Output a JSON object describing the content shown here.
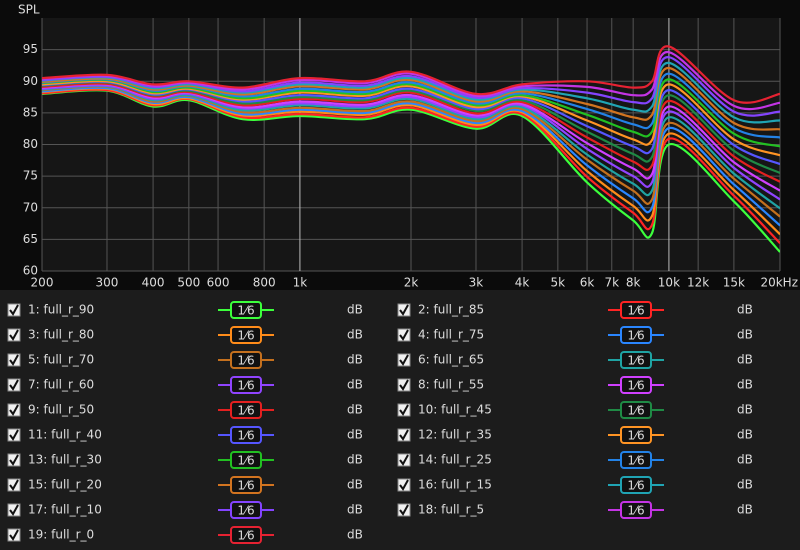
{
  "chart_data": {
    "type": "line",
    "y_label": "SPL",
    "log_x": true,
    "grid": true,
    "xlim": [
      200,
      20000
    ],
    "ylim": [
      60,
      100
    ],
    "xticks": [
      200,
      300,
      400,
      500,
      600,
      800,
      {
        "value": 1000,
        "label": "1k"
      },
      {
        "value": 2000,
        "label": "2k"
      },
      {
        "value": 3000,
        "label": "3k"
      },
      {
        "value": 4000,
        "label": "4k"
      },
      {
        "value": 5000,
        "label": "5k"
      },
      {
        "value": 6000,
        "label": "6k"
      },
      {
        "value": 7000,
        "label": "7k"
      },
      {
        "value": 8000,
        "label": "8k"
      },
      {
        "value": 10000,
        "label": "10k"
      },
      {
        "value": 12000,
        "label": "12k"
      },
      {
        "value": 15000,
        "label": "15k"
      },
      {
        "value": 20000,
        "label": "20kHz"
      }
    ],
    "yticks": [
      60,
      65,
      70,
      75,
      80,
      85,
      90,
      95
    ],
    "smoothing_label": "1⁄6",
    "unit_label": "dB",
    "x": [
      200,
      300,
      400,
      500,
      700,
      1000,
      1500,
      2000,
      3000,
      4000,
      6000,
      8000,
      9000,
      10000,
      15000,
      20000
    ],
    "series": [
      {
        "name": "1: full_r_90",
        "color": "#3cff3c",
        "values": [
          88.0,
          88.5,
          86.0,
          87.0,
          84.0,
          84.5,
          84.0,
          85.5,
          82.5,
          84.5,
          74.0,
          68.0,
          66.0,
          80.0,
          71.0,
          63.0
        ]
      },
      {
        "name": "2: full_r_85",
        "color": "#ff2424",
        "values": [
          88.1,
          88.6,
          86.2,
          87.2,
          84.3,
          84.8,
          84.3,
          85.8,
          82.8,
          84.8,
          74.9,
          69.2,
          67.3,
          80.9,
          71.9,
          64.4
        ]
      },
      {
        "name": "3: full_r_80",
        "color": "#ff8c1a",
        "values": [
          88.3,
          88.8,
          86.4,
          87.3,
          84.6,
          85.2,
          84.7,
          86.2,
          83.1,
          85.1,
          75.8,
          70.3,
          68.7,
          81.7,
          72.8,
          65.8
        ]
      },
      {
        "name": "4: full_r_75",
        "color": "#2a86ff",
        "values": [
          88.4,
          88.9,
          86.6,
          87.5,
          84.8,
          85.5,
          85.0,
          86.5,
          83.4,
          85.3,
          76.7,
          71.5,
          70.0,
          82.6,
          73.7,
          67.2
        ]
      },
      {
        "name": "5: full_r_70",
        "color": "#c4701e",
        "values": [
          88.6,
          89.1,
          86.8,
          87.7,
          85.1,
          85.8,
          85.3,
          86.8,
          83.7,
          85.6,
          77.6,
          72.7,
          71.3,
          83.4,
          74.6,
          68.6
        ]
      },
      {
        "name": "6: full_r_65",
        "color": "#1fa3a3",
        "values": [
          88.7,
          89.2,
          87.0,
          87.8,
          85.4,
          86.2,
          85.7,
          87.2,
          84.0,
          85.9,
          78.4,
          73.8,
          72.7,
          84.3,
          75.4,
          69.9
        ]
      },
      {
        "name": "7: full_r_60",
        "color": "#9044ff",
        "values": [
          88.8,
          89.3,
          87.2,
          88.0,
          85.7,
          86.5,
          86.0,
          87.5,
          84.3,
          86.2,
          79.3,
          75.0,
          74.0,
          85.2,
          76.3,
          71.3
        ]
      },
      {
        "name": "8: full_r_55",
        "color": "#d040ff",
        "values": [
          89.0,
          89.5,
          87.4,
          88.2,
          85.9,
          86.8,
          86.3,
          87.8,
          84.6,
          86.4,
          80.2,
          76.2,
          75.3,
          86.0,
          77.2,
          72.7
        ]
      },
      {
        "name": "9: full_r_50",
        "color": "#e42020",
        "values": [
          89.1,
          89.6,
          87.6,
          88.3,
          86.2,
          87.2,
          86.7,
          88.2,
          84.9,
          86.7,
          81.1,
          77.3,
          76.7,
          86.9,
          78.1,
          74.1
        ]
      },
      {
        "name": "10: full_r_45",
        "color": "#1f8a45",
        "values": [
          89.3,
          89.8,
          87.8,
          88.5,
          86.5,
          87.5,
          87.0,
          88.5,
          85.3,
          87.0,
          82.0,
          78.5,
          78.0,
          87.8,
          79.0,
          75.5
        ]
      },
      {
        "name": "11: full_r_40",
        "color": "#5656ff",
        "values": [
          89.4,
          89.9,
          87.9,
          88.7,
          86.8,
          87.8,
          87.3,
          88.8,
          85.6,
          87.3,
          82.9,
          79.7,
          79.3,
          88.6,
          79.9,
          76.9
        ]
      },
      {
        "name": "12: full_r_35",
        "color": "#ff9424",
        "values": [
          89.5,
          90.0,
          88.1,
          88.8,
          87.1,
          88.2,
          87.7,
          89.2,
          85.9,
          87.6,
          83.8,
          80.8,
          80.7,
          89.5,
          80.8,
          78.3
        ]
      },
      {
        "name": "13: full_r_30",
        "color": "#22c022",
        "values": [
          89.7,
          90.2,
          88.3,
          89.0,
          87.3,
          88.5,
          88.0,
          89.5,
          86.2,
          87.8,
          84.7,
          82.0,
          82.0,
          90.3,
          81.7,
          79.7
        ]
      },
      {
        "name": "14: full_r_25",
        "color": "#2382e6",
        "values": [
          89.8,
          90.3,
          88.5,
          89.2,
          87.6,
          88.8,
          88.3,
          89.8,
          86.5,
          88.1,
          85.6,
          83.2,
          83.3,
          91.2,
          82.6,
          81.1
        ]
      },
      {
        "name": "15: full_r_20",
        "color": "#d27420",
        "values": [
          89.9,
          90.4,
          88.7,
          89.3,
          87.9,
          89.2,
          88.7,
          90.2,
          86.8,
          88.4,
          86.4,
          84.3,
          84.7,
          92.1,
          83.4,
          82.4
        ]
      },
      {
        "name": "16: full_r_15",
        "color": "#20a4b4",
        "values": [
          90.1,
          90.6,
          88.9,
          89.5,
          88.2,
          89.5,
          89.0,
          90.5,
          87.1,
          88.7,
          87.3,
          85.5,
          86.0,
          92.9,
          84.3,
          83.8
        ]
      },
      {
        "name": "17: full_r_10",
        "color": "#8444ff",
        "values": [
          90.2,
          90.7,
          89.1,
          89.7,
          88.4,
          89.8,
          89.3,
          90.8,
          87.4,
          88.9,
          88.2,
          86.7,
          87.3,
          93.8,
          85.2,
          85.2
        ]
      },
      {
        "name": "18: full_r_5",
        "color": "#c434e4",
        "values": [
          90.4,
          90.9,
          89.3,
          89.8,
          88.7,
          90.2,
          89.7,
          91.2,
          87.7,
          89.2,
          89.1,
          87.8,
          88.7,
          94.6,
          86.1,
          86.6
        ]
      },
      {
        "name": "19: full_r_0",
        "color": "#e62232",
        "values": [
          90.5,
          91.0,
          89.5,
          90.0,
          89.0,
          90.5,
          90.0,
          91.5,
          88.0,
          89.5,
          90.0,
          89.0,
          90.0,
          95.5,
          87.0,
          88.0
        ]
      }
    ]
  }
}
